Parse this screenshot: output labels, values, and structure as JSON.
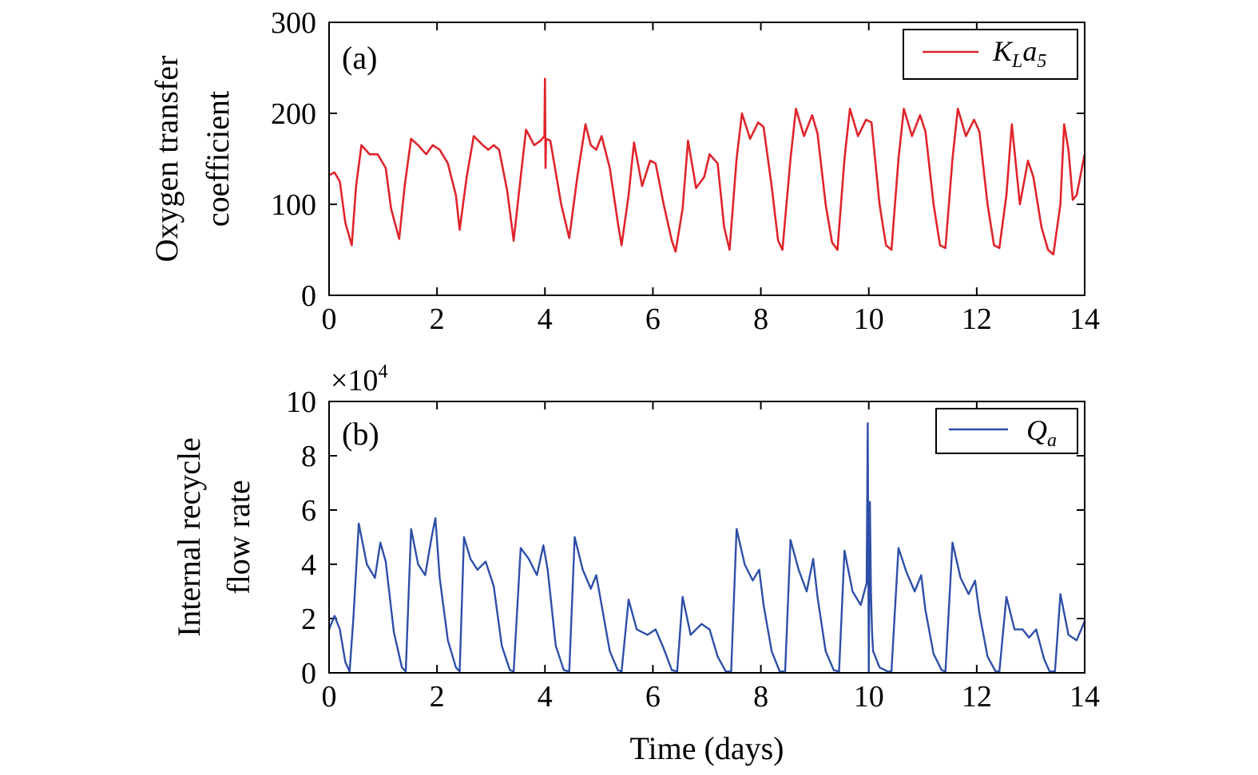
{
  "chart_data": [
    {
      "type": "line",
      "panel_label": "(a)",
      "xlabel": "",
      "ylabel_lines": [
        "Oxygen transfer",
        "coefficient"
      ],
      "xlim": [
        0,
        14
      ],
      "ylim": [
        0,
        300
      ],
      "xticks": [
        "0",
        "2",
        "4",
        "6",
        "8",
        "10",
        "12",
        "14"
      ],
      "yticks": [
        "0",
        "100",
        "200",
        "300"
      ],
      "grid": false,
      "legend_position": "top-right",
      "legend": {
        "main": "K",
        "sub1": "L",
        "mid": "a",
        "sub2": "5"
      },
      "color": "#e0242b",
      "series": [
        {
          "x": [
            0,
            0.1,
            0.2,
            0.3,
            0.42,
            0.5,
            0.6,
            0.75,
            0.9,
            1.05,
            1.15,
            1.3,
            1.4,
            1.52,
            1.65,
            1.8,
            1.92,
            2.05,
            2.2,
            2.35,
            2.42,
            2.55,
            2.68,
            2.85,
            2.95,
            3.05,
            3.15,
            3.3,
            3.42,
            3.55,
            3.65,
            3.8,
            3.92,
            3.99,
            4.0,
            4.01,
            4.02,
            4.1,
            4.3,
            4.45,
            4.6,
            4.75,
            4.85,
            4.95,
            5.05,
            5.2,
            5.35,
            5.42,
            5.55,
            5.65,
            5.8,
            5.95,
            6.05,
            6.2,
            6.35,
            6.42,
            6.55,
            6.65,
            6.8,
            6.95,
            7.05,
            7.2,
            7.32,
            7.42,
            7.55,
            7.65,
            7.8,
            7.95,
            8.05,
            8.2,
            8.32,
            8.4,
            8.55,
            8.65,
            8.8,
            8.95,
            9.05,
            9.2,
            9.32,
            9.42,
            9.55,
            9.65,
            9.8,
            9.95,
            10.05,
            10.2,
            10.32,
            10.42,
            10.55,
            10.65,
            10.8,
            10.95,
            11.05,
            11.2,
            11.32,
            11.42,
            11.55,
            11.65,
            11.8,
            11.95,
            12.05,
            12.2,
            12.32,
            12.42,
            12.55,
            12.65,
            12.8,
            12.95,
            13.05,
            13.2,
            13.32,
            13.42,
            13.55,
            13.62,
            13.7,
            13.78,
            13.85,
            14.0
          ],
          "y": [
            132,
            135,
            125,
            80,
            55,
            120,
            165,
            155,
            155,
            140,
            95,
            62,
            120,
            172,
            165,
            155,
            165,
            160,
            145,
            110,
            72,
            130,
            175,
            165,
            160,
            165,
            160,
            115,
            60,
            130,
            182,
            165,
            170,
            175,
            238,
            140,
            172,
            170,
            100,
            63,
            130,
            188,
            165,
            160,
            175,
            140,
            80,
            55,
            110,
            168,
            120,
            148,
            145,
            100,
            60,
            48,
            95,
            170,
            118,
            130,
            155,
            145,
            75,
            50,
            150,
            200,
            172,
            190,
            185,
            120,
            60,
            50,
            150,
            205,
            175,
            198,
            178,
            100,
            58,
            50,
            150,
            205,
            175,
            193,
            190,
            100,
            55,
            50,
            150,
            205,
            175,
            198,
            180,
            100,
            55,
            52,
            150,
            205,
            175,
            193,
            180,
            100,
            55,
            52,
            110,
            188,
            100,
            148,
            130,
            75,
            50,
            45,
            100,
            188,
            160,
            105,
            110,
            155
          ]
        }
      ]
    },
    {
      "type": "line",
      "panel_label": "(b)",
      "xlabel": "Time (days)",
      "ylabel_lines": [
        "Internal recycle",
        "flow rate"
      ],
      "xlim": [
        0,
        14
      ],
      "ylim": [
        0,
        10
      ],
      "y_multiplier": {
        "base": "×10",
        "exponent": "4"
      },
      "xticks": [
        "0",
        "2",
        "4",
        "6",
        "8",
        "10",
        "12",
        "14"
      ],
      "yticks": [
        "0",
        "2",
        "4",
        "6",
        "8",
        "10"
      ],
      "grid": false,
      "legend_position": "top-right",
      "legend": {
        "main": "Q",
        "sub1": "a"
      },
      "color": "#2e4fa8",
      "series": [
        {
          "x": [
            0,
            0.1,
            0.2,
            0.3,
            0.38,
            0.45,
            0.55,
            0.7,
            0.85,
            0.95,
            1.05,
            1.2,
            1.35,
            1.42,
            1.52,
            1.65,
            1.78,
            1.9,
            1.97,
            2.05,
            2.2,
            2.35,
            2.42,
            2.5,
            2.62,
            2.75,
            2.9,
            3.05,
            3.2,
            3.35,
            3.42,
            3.55,
            3.7,
            3.85,
            3.97,
            4.05,
            4.2,
            4.35,
            4.45,
            4.55,
            4.7,
            4.85,
            4.95,
            5.05,
            5.2,
            5.35,
            5.42,
            5.55,
            5.7,
            5.9,
            6.05,
            6.2,
            6.35,
            6.45,
            6.55,
            6.7,
            6.9,
            7.05,
            7.2,
            7.35,
            7.45,
            7.55,
            7.7,
            7.85,
            7.97,
            8.05,
            8.2,
            8.35,
            8.45,
            8.55,
            8.7,
            8.85,
            8.97,
            9.05,
            9.2,
            9.35,
            9.45,
            9.55,
            9.7,
            9.85,
            9.96,
            9.98,
            10.0,
            10.02,
            10.04,
            10.06,
            10.08,
            10.2,
            10.35,
            10.42,
            10.55,
            10.7,
            10.85,
            10.97,
            11.05,
            11.2,
            11.35,
            11.42,
            11.55,
            11.7,
            11.85,
            11.97,
            12.05,
            12.2,
            12.35,
            12.42,
            12.55,
            12.7,
            12.85,
            12.97,
            13.1,
            13.25,
            13.35,
            13.45,
            13.55,
            13.7,
            13.85,
            14.0
          ],
          "y": [
            1.6,
            2.1,
            1.6,
            0.4,
            0.05,
            2.0,
            5.5,
            4.0,
            3.5,
            4.8,
            4.1,
            1.5,
            0.2,
            0.05,
            5.3,
            4.0,
            3.6,
            5.0,
            5.7,
            3.5,
            1.2,
            0.2,
            0.05,
            5.0,
            4.2,
            3.8,
            4.1,
            3.2,
            1.0,
            0.1,
            0.05,
            4.6,
            4.2,
            3.6,
            4.7,
            3.8,
            1.0,
            0.1,
            0.05,
            5.0,
            3.8,
            3.1,
            3.6,
            2.5,
            0.8,
            0.1,
            0.05,
            2.7,
            1.6,
            1.4,
            1.6,
            0.9,
            0.1,
            0.05,
            2.8,
            1.4,
            1.8,
            1.6,
            0.6,
            0.05,
            0.05,
            5.3,
            4.0,
            3.4,
            3.8,
            2.5,
            0.8,
            0.05,
            0.05,
            4.9,
            3.8,
            3.0,
            4.2,
            2.8,
            0.8,
            0.1,
            0.05,
            4.5,
            3.0,
            2.5,
            3.3,
            9.2,
            0.0,
            6.3,
            3.0,
            1.5,
            0.8,
            0.2,
            0.05,
            0.05,
            4.6,
            3.7,
            3.0,
            3.6,
            2.3,
            0.7,
            0.1,
            0.05,
            4.8,
            3.5,
            2.9,
            3.4,
            2.2,
            0.6,
            0.05,
            0.05,
            2.8,
            1.6,
            1.6,
            1.3,
            1.6,
            0.5,
            0.05,
            0.05,
            2.9,
            1.4,
            1.2,
            1.9
          ]
        }
      ]
    }
  ]
}
